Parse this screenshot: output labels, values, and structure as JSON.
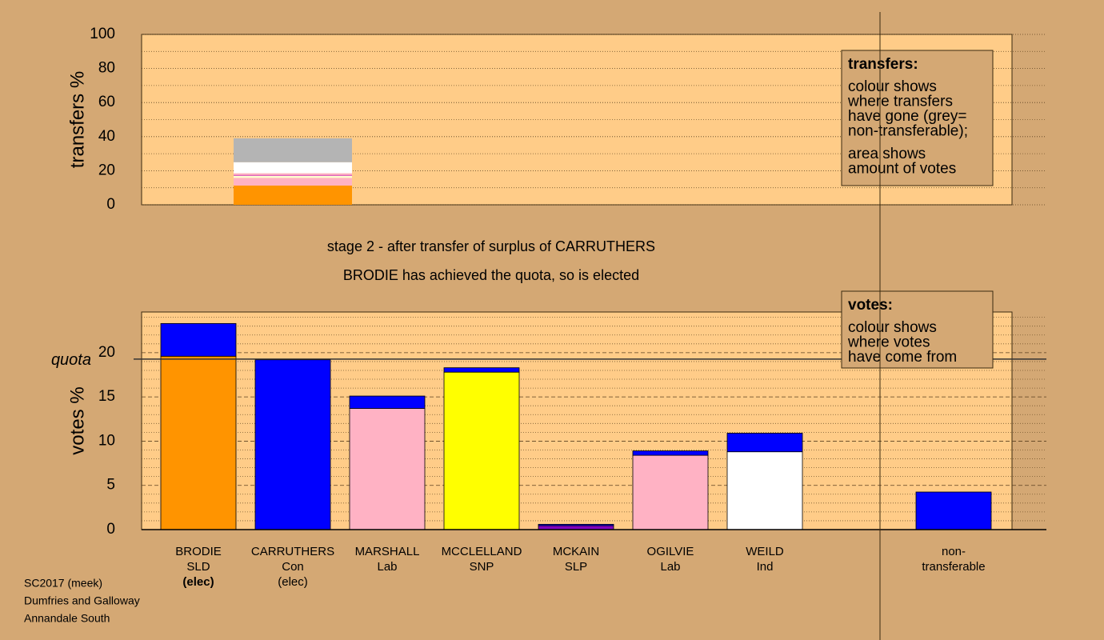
{
  "chart_data": [
    {
      "type": "bar",
      "ylabel": "transfers %",
      "categories": [
        null
      ],
      "ylim": [
        0,
        100
      ],
      "yticks": [
        0,
        20,
        40,
        60,
        80,
        100
      ],
      "minor_yticks": [
        10,
        30,
        50,
        70,
        90
      ],
      "series": [
        {
          "color": "#ff9400",
          "values": [
            11.3
          ]
        },
        {
          "color": "#ffb2c4",
          "values": [
            4.5
          ]
        },
        {
          "color": "#ffffd0",
          "values": [
            1.3
          ]
        },
        {
          "color": "#c000c0",
          "values": [
            0.4
          ]
        },
        {
          "color": "#ffb2c4",
          "values": [
            1.0
          ]
        },
        {
          "color": "#ffffff",
          "values": [
            6.5
          ]
        },
        {
          "color": "#b4b4b4",
          "values": [
            14.0
          ]
        }
      ],
      "legend_title": "transfers:",
      "legend_lines": [
        "colour shows",
        "where transfers",
        "have gone (grey=",
        "non-transferable);",
        "area shows",
        "amount of votes"
      ]
    },
    {
      "type": "bar",
      "ylabel": "votes %",
      "annotations": [
        "stage 2 - after transfer of surplus of CARRUTHERS",
        "BRODIE has achieved the quota, so is elected"
      ],
      "categories": [
        "BRODIE",
        "CARRUTHERS",
        "MARSHALL",
        "MCCLELLAND",
        "MCKAIN",
        "OGILVIE",
        "WEILD",
        null,
        "non-"
      ],
      "parties": [
        "SLD",
        "Con",
        "Lab",
        "SNP",
        "SLP",
        "Lab",
        "Ind",
        null,
        "transferable"
      ],
      "status": [
        "(elec)",
        "(elec)",
        null,
        null,
        null,
        null,
        null,
        null,
        null
      ],
      "ylim": [
        0,
        24.6
      ],
      "yticks": [
        0,
        5,
        10,
        15,
        20
      ],
      "minor_yticks": [
        1,
        2,
        3,
        4,
        6,
        7,
        8,
        9,
        11,
        12,
        13,
        14,
        16,
        17,
        18,
        19,
        21,
        22,
        23,
        24
      ],
      "quota": 19.28,
      "quota_label": "quota",
      "series": [
        {
          "colors": [
            "#ff9400",
            "#0000ff",
            "#ffb2c4",
            "#ffff00",
            "#8000c0",
            "#ffb2c4",
            "#ffffff",
            null,
            "#0000ff"
          ],
          "values": [
            19.6,
            19.2,
            13.7,
            17.8,
            0.45,
            8.4,
            8.8,
            null,
            4.25
          ]
        },
        {
          "color": "#0000ff",
          "values": [
            3.7,
            null,
            1.4,
            0.5,
            0.15,
            0.5,
            2.1,
            null,
            null
          ]
        }
      ],
      "legend_title": "votes:",
      "legend_lines": [
        "colour shows",
        "where votes",
        "have come from"
      ]
    }
  ],
  "footer": [
    "SC2017 (meek)",
    "Dumfries and Galloway",
    "Annandale South"
  ]
}
